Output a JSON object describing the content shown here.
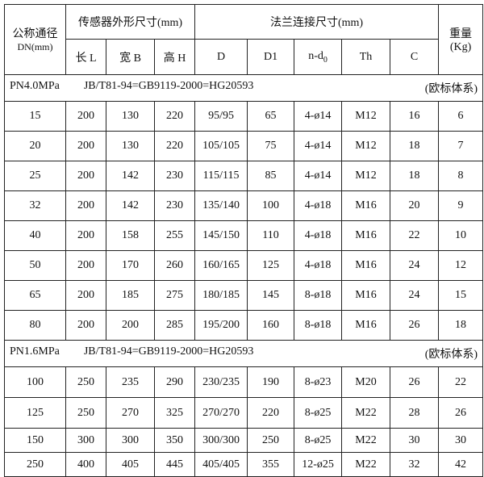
{
  "header": {
    "dn": "公称通径",
    "dn_unit": "DN(mm)",
    "sensor": "传感器外形尺寸(mm)",
    "flange": "法兰连接尺寸(mm)",
    "weight": "重量",
    "weight_unit": "(Kg)",
    "cols": [
      "长 L",
      "宽 B",
      "高 H",
      "D",
      "D1",
      "n-d",
      "Th",
      "C"
    ],
    "nd_sub": "0"
  },
  "sections": [
    {
      "pressure": "PN4.0MPa",
      "standard": "JB/T81-94=GB9119-2000=HG20593",
      "system": "(欧标体系)",
      "rows": [
        [
          "15",
          "200",
          "130",
          "220",
          "95/95",
          "65",
          "4-ø14",
          "M12",
          "16",
          "6"
        ],
        [
          "20",
          "200",
          "130",
          "220",
          "105/105",
          "75",
          "4-ø14",
          "M12",
          "18",
          "7"
        ],
        [
          "25",
          "200",
          "142",
          "230",
          "115/115",
          "85",
          "4-ø14",
          "M12",
          "18",
          "8"
        ],
        [
          "32",
          "200",
          "142",
          "230",
          "135/140",
          "100",
          "4-ø18",
          "M16",
          "20",
          "9"
        ],
        [
          "40",
          "200",
          "158",
          "255",
          "145/150",
          "110",
          "4-ø18",
          "M16",
          "22",
          "10"
        ],
        [
          "50",
          "200",
          "170",
          "260",
          "160/165",
          "125",
          "4-ø18",
          "M16",
          "24",
          "12"
        ],
        [
          "65",
          "200",
          "185",
          "275",
          "180/185",
          "145",
          "8-ø18",
          "M16",
          "24",
          "15"
        ],
        [
          "80",
          "200",
          "200",
          "285",
          "195/200",
          "160",
          "8-ø18",
          "M16",
          "26",
          "18"
        ]
      ]
    },
    {
      "pressure": "PN1.6MPa",
      "standard": "JB/T81-94=GB9119-2000=HG20593",
      "system": "(欧标体系)",
      "rows": [
        [
          "100",
          "250",
          "235",
          "290",
          "230/235",
          "190",
          "8-ø23",
          "M20",
          "26",
          "22"
        ],
        [
          "125",
          "250",
          "270",
          "325",
          "270/270",
          "220",
          "8-ø25",
          "M22",
          "28",
          "26"
        ],
        [
          "150",
          "300",
          "300",
          "350",
          "300/300",
          "250",
          "8-ø25",
          "M22",
          "30",
          "30"
        ],
        [
          "250",
          "400",
          "405",
          "445",
          "405/405",
          "355",
          "12-ø25",
          "M22",
          "32",
          "42"
        ]
      ]
    }
  ]
}
